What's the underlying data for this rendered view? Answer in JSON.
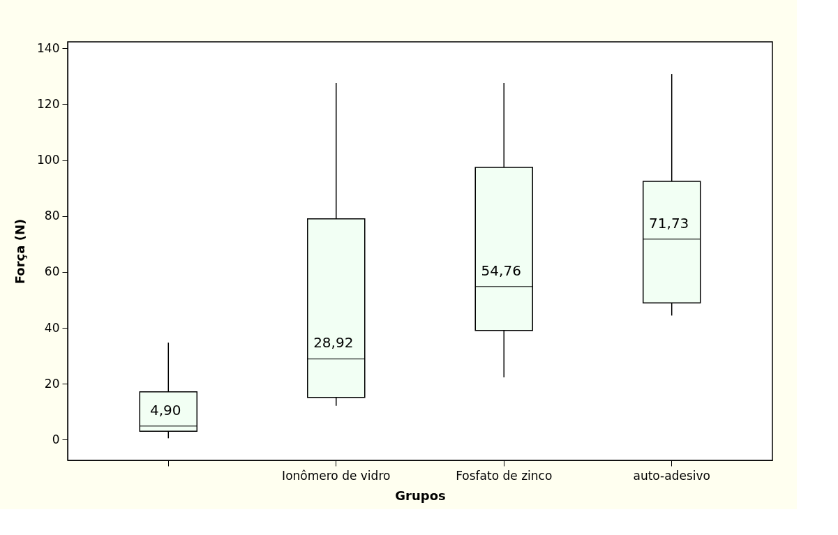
{
  "chart_data": {
    "type": "box",
    "xlabel": "Grupos",
    "ylabel": "Força (N)",
    "categories": [
      null,
      "Ionômero de vidro",
      "Fosfato de zinco",
      "auto-adesivo"
    ],
    "boxes": [
      {
        "low": 0.5,
        "q1": 3.0,
        "median": 4.9,
        "q3": 17.1,
        "high": 34.7
      },
      {
        "low": 12.1,
        "q1": 15.1,
        "median": 28.92,
        "q3": 79.0,
        "high": 127.6
      },
      {
        "low": 22.3,
        "q1": 39.1,
        "median": 54.76,
        "q3": 97.4,
        "high": 127.6
      },
      {
        "low": 44.4,
        "q1": 48.9,
        "median": 71.73,
        "q3": 92.4,
        "high": 130.8
      }
    ],
    "value_labels": [
      "4,90",
      "28,92",
      "54,76",
      "71,73"
    ],
    "color": "#f2fff4",
    "ylim": [
      -7.4,
      142.3
    ],
    "yticks": [
      0,
      20,
      40,
      60,
      80,
      100,
      120,
      140
    ],
    "grid": false
  }
}
